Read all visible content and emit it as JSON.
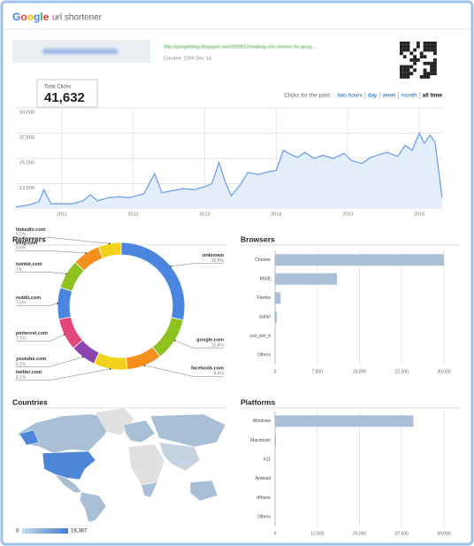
{
  "header": {
    "logo": "Google",
    "product": "url shortener"
  },
  "link": {
    "long_url": "http://googleblog.blogspot.com/2009/12/making-urls-shorter-for-goog...",
    "created": "Created: 2009 Dec 14"
  },
  "total": {
    "label": "Total Clicks",
    "value": "41,632"
  },
  "range": {
    "label": "Clicks for the past:",
    "options": [
      "two hours",
      "day",
      "week",
      "month",
      "all time"
    ],
    "selected": 4
  },
  "chart_data": [
    {
      "type": "line",
      "color": "#6fa0e8",
      "fill": "#e4eefb",
      "x": [
        2010.36,
        2010.55,
        2010.68,
        2010.75,
        2010.85,
        2011.0,
        2011.15,
        2011.3,
        2011.4,
        2011.5,
        2011.65,
        2011.8,
        2011.95,
        2012.05,
        2012.15,
        2012.3,
        2012.4,
        2012.55,
        2012.7,
        2012.85,
        2013.0,
        2013.1,
        2013.2,
        2013.28,
        2013.37,
        2013.5,
        2013.6,
        2013.75,
        2013.9,
        2014.0,
        2014.1,
        2014.2,
        2014.3,
        2014.4,
        2014.53,
        2014.65,
        2014.8,
        2014.95,
        2015.05,
        2015.2,
        2015.32,
        2015.45,
        2015.55,
        2015.7,
        2015.8,
        2015.9,
        2016.0,
        2016.07,
        2016.15,
        2016.22,
        2016.32
      ],
      "values": [
        1000,
        2000,
        3500,
        9500,
        2500,
        2500,
        2500,
        4000,
        7000,
        4000,
        5500,
        6000,
        5500,
        6500,
        7500,
        17500,
        8000,
        9000,
        10000,
        9500,
        11000,
        12500,
        23000,
        14000,
        6500,
        12000,
        18000,
        17000,
        18500,
        19000,
        29000,
        27000,
        25500,
        28000,
        25000,
        26500,
        25000,
        27500,
        24000,
        22500,
        25500,
        27000,
        28000,
        26000,
        31500,
        29000,
        37500,
        32500,
        36500,
        33000,
        5500
      ],
      "xlim": [
        2010.36,
        2016.32
      ],
      "xticks": [
        2011,
        2012,
        2013,
        2014,
        2015,
        2016
      ],
      "ylim": [
        0,
        50000
      ],
      "yticks": [
        {
          "value": 12500,
          "label": "12,500"
        },
        {
          "value": 25000,
          "label": "25,000"
        },
        {
          "value": 37500,
          "label": "37,500"
        },
        {
          "value": 50000,
          "label": "50,000"
        }
      ],
      "grid": true
    },
    {
      "type": "donut",
      "title": "Referrers",
      "categories": [
        "unknown",
        "google.com",
        "facebook.com",
        "twitter.com",
        "youtube.com",
        "pinterest.com",
        "reddit.com",
        "tumblr.com",
        "bing.com",
        "linkedin.com"
      ],
      "values": [
        26.9,
        10.4,
        8.4,
        8.1,
        6.1,
        7.7,
        7.6,
        7,
        6.6,
        5.5
      ],
      "value_labels": [
        "26.9%",
        "10.4%",
        "8.4%",
        "8.1%",
        "6.1%",
        "7.7%",
        "7.6%",
        "7%",
        "6.6%",
        "5.5%"
      ],
      "colors": [
        "#4a86e0",
        "#8dc21f",
        "#f5901e",
        "#f2d21b",
        "#8e44ad",
        "#e2487a",
        "#4a86e0",
        "#8dc21f",
        "#f5901e",
        "#f2d21b"
      ]
    },
    {
      "type": "hbar",
      "title": "Browsers",
      "color": "#a8bfd6",
      "categories": [
        "Chrome",
        "MSIE",
        "Firefox",
        "Safari",
        "xxx_xxx_k",
        "Others"
      ],
      "values": [
        30000,
        11000,
        1000,
        300,
        100,
        50
      ],
      "xlim": [
        0,
        30000
      ],
      "xticks": [
        0,
        {
          "value": 7500,
          "label": "7,500"
        },
        {
          "value": 15000,
          "label": "15,000"
        },
        {
          "value": 22500,
          "label": "22,500"
        },
        {
          "value": 30000,
          "label": "30,000"
        }
      ],
      "grid": true
    },
    {
      "type": "hbar",
      "title": "Platforms",
      "color": "#a8bfd6",
      "categories": [
        "Windows",
        "Macintosh",
        "X11",
        "Android",
        "iPhone",
        "Others"
      ],
      "values": [
        41000,
        300,
        100,
        100,
        50,
        50
      ],
      "xlim": [
        0,
        50000
      ],
      "xticks": [
        0,
        {
          "value": 12500,
          "label": "12,500"
        },
        {
          "value": 25000,
          "label": "25,000"
        },
        {
          "value": 37500,
          "label": "37,500"
        },
        {
          "value": 50000,
          "label": "50,000"
        }
      ],
      "grid": true
    }
  ],
  "countries": {
    "title": "Countries",
    "legend_min": "0",
    "legend_max": "19,367"
  }
}
